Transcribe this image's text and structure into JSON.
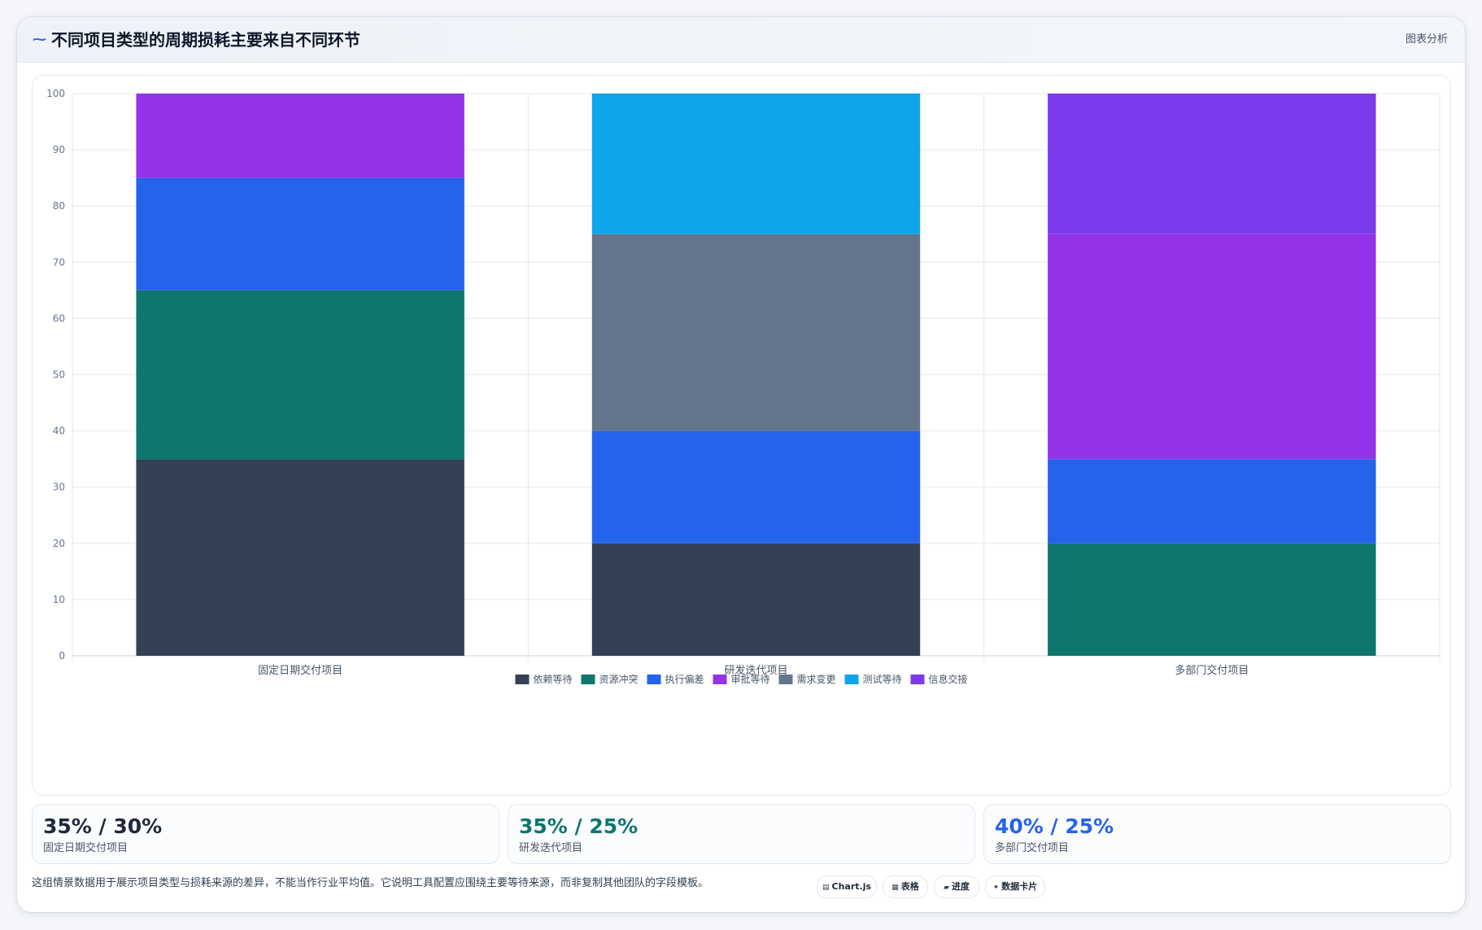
{
  "header": {
    "icon": "trend-icon",
    "title": "不同项目类型的周期损耗主要来自不同环节",
    "action_label": "图表分析"
  },
  "chart_data": {
    "type": "bar",
    "stacked": true,
    "title": "",
    "xlabel": "",
    "ylabel": "",
    "ylim": [
      0,
      100
    ],
    "yticks": [
      0,
      10,
      20,
      30,
      40,
      50,
      60,
      70,
      80,
      90,
      100
    ],
    "grid": true,
    "legend_position": "bottom",
    "categories": [
      "固定日期交付项目",
      "研发迭代项目",
      "多部门交付项目"
    ],
    "series": [
      {
        "name": "依赖等待",
        "color": "#334155",
        "values": [
          35,
          20,
          0
        ]
      },
      {
        "name": "资源冲突",
        "color": "#0f766e",
        "values": [
          30,
          0,
          20
        ]
      },
      {
        "name": "执行偏差",
        "color": "#2563eb",
        "values": [
          20,
          20,
          15
        ]
      },
      {
        "name": "审批等待",
        "color": "#9333ea",
        "values": [
          15,
          0,
          40
        ]
      },
      {
        "name": "需求变更",
        "color": "#64748b",
        "values": [
          0,
          35,
          0
        ]
      },
      {
        "name": "测试等待",
        "color": "#0ea5e9",
        "values": [
          0,
          25,
          0
        ]
      },
      {
        "name": "信息交接",
        "color": "#7c3aed",
        "values": [
          0,
          0,
          25
        ]
      }
    ]
  },
  "stats": [
    {
      "value": "35% / 30%",
      "label": "固定日期交付项目",
      "color": "#1e293b"
    },
    {
      "value": "35% / 25%",
      "label": "研发迭代项目",
      "color": "#0f766e"
    },
    {
      "value": "40% / 25%",
      "label": "多部门交付项目",
      "color": "#2563eb"
    }
  ],
  "footnote": "这组情景数据用于展示项目类型与损耗来源的差异，不能当作行业平均值。它说明工具配置应围绕主要等待来源，而非复制其他团队的字段模板。",
  "pills": [
    {
      "icon": "chart-icon",
      "glyph": "▤",
      "label": "Chart.js"
    },
    {
      "icon": "table-icon",
      "glyph": "▦",
      "label": "表格"
    },
    {
      "icon": "progress-icon",
      "glyph": "▰",
      "label": "进度"
    },
    {
      "icon": "card-icon",
      "glyph": "✦",
      "label": "数据卡片"
    }
  ]
}
